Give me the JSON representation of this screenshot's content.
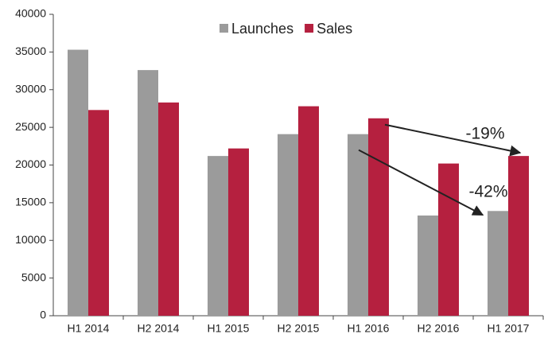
{
  "chart_data": {
    "type": "bar",
    "categories": [
      "H1 2014",
      "H2 2014",
      "H1 2015",
      "H2 2015",
      "H1 2016",
      "H2 2016",
      "H1 2017"
    ],
    "series": [
      {
        "name": "Launches",
        "color": "#9b9b9b",
        "values": [
          35300,
          32600,
          21200,
          24100,
          24100,
          13300,
          13900
        ]
      },
      {
        "name": "Sales",
        "color": "#b5203f",
        "values": [
          27300,
          28300,
          22200,
          27800,
          26200,
          20200,
          21200
        ]
      }
    ],
    "ylim": [
      0,
      40000
    ],
    "yticks": [
      0,
      5000,
      10000,
      15000,
      20000,
      25000,
      30000,
      35000,
      40000
    ],
    "grid": false,
    "legend": "top",
    "annotations": [
      "-19%",
      "-42%"
    ]
  }
}
